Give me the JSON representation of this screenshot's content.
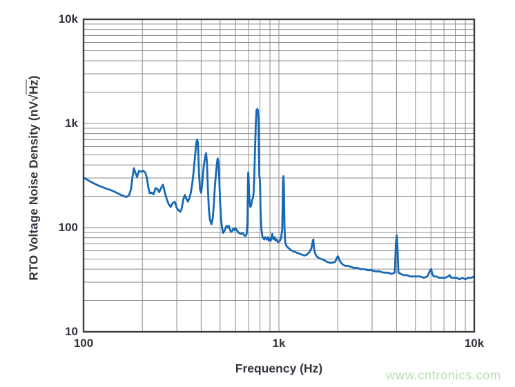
{
  "watermark": {
    "text": "www.cntronics.com"
  },
  "chart_data": {
    "type": "line",
    "title": "",
    "xlabel": "Frequency (Hz)",
    "ylabel": "RTO Voltage Noise Density (nV√Hz)",
    "ylabel_parts": {
      "prefix": "RTO Voltage Noise Density (nV",
      "radical": "√",
      "radicand": "Hz",
      "suffix": ")"
    },
    "x_scale": "log",
    "y_scale": "log",
    "xlim": [
      100,
      10000
    ],
    "ylim": [
      10,
      10000
    ],
    "x_ticks": [
      {
        "value": 100,
        "label": "100"
      },
      {
        "value": 1000,
        "label": "1k"
      },
      {
        "value": 10000,
        "label": "10k"
      }
    ],
    "y_ticks": [
      {
        "value": 10,
        "label": "10"
      },
      {
        "value": 100,
        "label": "100"
      },
      {
        "value": 1000,
        "label": "1k"
      },
      {
        "value": 10000,
        "label": "10k"
      }
    ],
    "grid": "major+minor log grid, all lines gray",
    "legend": "none",
    "colors": {
      "line": "#1669b4",
      "grid": "#8a8a8a",
      "spine": "#3b3b44",
      "text": "#34343e",
      "watermark": "#b4e4ad"
    },
    "series": [
      {
        "name": "RTO voltage noise density",
        "points": [
          [
            100,
            302
          ],
          [
            104,
            290
          ],
          [
            108,
            278
          ],
          [
            112,
            268
          ],
          [
            116,
            260
          ],
          [
            120,
            252
          ],
          [
            125,
            245
          ],
          [
            130,
            238
          ],
          [
            136,
            231
          ],
          [
            142,
            224
          ],
          [
            148,
            216
          ],
          [
            154,
            208
          ],
          [
            160,
            201
          ],
          [
            166,
            197
          ],
          [
            171,
            204
          ],
          [
            175,
            235
          ],
          [
            178,
            305
          ],
          [
            181,
            372
          ],
          [
            184,
            338
          ],
          [
            188,
            306
          ],
          [
            192,
            350
          ],
          [
            197,
            344
          ],
          [
            202,
            352
          ],
          [
            207,
            338
          ],
          [
            211,
            302
          ],
          [
            214,
            250
          ],
          [
            218,
            214
          ],
          [
            223,
            217
          ],
          [
            228,
            209
          ],
          [
            234,
            240
          ],
          [
            239,
            235
          ],
          [
            244,
            219
          ],
          [
            250,
            243
          ],
          [
            255,
            258
          ],
          [
            261,
            216
          ],
          [
            267,
            186
          ],
          [
            273,
            168
          ],
          [
            279,
            158
          ],
          [
            286,
            172
          ],
          [
            293,
            177
          ],
          [
            300,
            155
          ],
          [
            307,
            146
          ],
          [
            313,
            142
          ],
          [
            318,
            152
          ],
          [
            324,
            186
          ],
          [
            330,
            206
          ],
          [
            336,
            190
          ],
          [
            342,
            178
          ],
          [
            348,
            191
          ],
          [
            354,
            216
          ],
          [
            360,
            262
          ],
          [
            366,
            345
          ],
          [
            372,
            480
          ],
          [
            377,
            630
          ],
          [
            381,
            700
          ],
          [
            385,
            655
          ],
          [
            390,
            330
          ],
          [
            395,
            232
          ],
          [
            400,
            216
          ],
          [
            405,
            262
          ],
          [
            412,
            385
          ],
          [
            420,
            485
          ],
          [
            424,
            518
          ],
          [
            428,
            430
          ],
          [
            433,
            240
          ],
          [
            438,
            150
          ],
          [
            444,
            118
          ],
          [
            452,
            108
          ],
          [
            458,
            122
          ],
          [
            464,
            162
          ],
          [
            470,
            245
          ],
          [
            477,
            340
          ],
          [
            483,
            430
          ],
          [
            486,
            462
          ],
          [
            490,
            430
          ],
          [
            495,
            300
          ],
          [
            500,
            178
          ],
          [
            506,
            120
          ],
          [
            512,
            98
          ],
          [
            519,
            89
          ],
          [
            526,
            93
          ],
          [
            533,
            99
          ],
          [
            540,
            104
          ],
          [
            547,
            100
          ],
          [
            554,
            104
          ],
          [
            561,
            96
          ],
          [
            568,
            91
          ],
          [
            576,
            93
          ],
          [
            584,
            98
          ],
          [
            592,
            95
          ],
          [
            600,
            99
          ],
          [
            610,
            94
          ],
          [
            620,
            90
          ],
          [
            630,
            88
          ],
          [
            641,
            87
          ],
          [
            652,
            89
          ],
          [
            663,
            85
          ],
          [
            674,
            83
          ],
          [
            684,
            87
          ],
          [
            690,
            112
          ],
          [
            695,
            285
          ],
          [
            697,
            340
          ],
          [
            700,
            292
          ],
          [
            704,
            212
          ],
          [
            709,
            172
          ],
          [
            714,
            158
          ],
          [
            719,
            161
          ],
          [
            724,
            170
          ],
          [
            730,
            186
          ],
          [
            736,
            191
          ],
          [
            742,
            212
          ],
          [
            748,
            305
          ],
          [
            755,
            570
          ],
          [
            762,
            1020
          ],
          [
            768,
            1340
          ],
          [
            775,
            1375
          ],
          [
            781,
            1345
          ],
          [
            786,
            1100
          ],
          [
            790,
            520
          ],
          [
            794,
            312
          ],
          [
            798,
            300
          ],
          [
            802,
            232
          ],
          [
            806,
            142
          ],
          [
            812,
            102
          ],
          [
            818,
            89
          ],
          [
            825,
            81
          ],
          [
            833,
            79
          ],
          [
            841,
            77
          ],
          [
            850,
            81
          ],
          [
            859,
            79
          ],
          [
            868,
            77
          ],
          [
            878,
            81
          ],
          [
            888,
            75
          ],
          [
            898,
            79
          ],
          [
            908,
            75
          ],
          [
            918,
            81
          ],
          [
            925,
            87
          ],
          [
            932,
            79
          ],
          [
            942,
            77
          ],
          [
            952,
            81
          ],
          [
            963,
            75
          ],
          [
            974,
            77
          ],
          [
            986,
            73
          ],
          [
            1000,
            73
          ],
          [
            1012,
            75
          ],
          [
            1025,
            79
          ],
          [
            1040,
            96
          ],
          [
            1050,
            285
          ],
          [
            1055,
            312
          ],
          [
            1060,
            255
          ],
          [
            1068,
            102
          ],
          [
            1077,
            73
          ],
          [
            1088,
            68
          ],
          [
            1100,
            66
          ],
          [
            1115,
            64
          ],
          [
            1130,
            63
          ],
          [
            1150,
            61
          ],
          [
            1170,
            60
          ],
          [
            1195,
            59
          ],
          [
            1220,
            58
          ],
          [
            1250,
            57
          ],
          [
            1280,
            56
          ],
          [
            1315,
            55
          ],
          [
            1350,
            54
          ],
          [
            1390,
            55
          ],
          [
            1430,
            58
          ],
          [
            1465,
            63
          ],
          [
            1490,
            74
          ],
          [
            1500,
            77
          ],
          [
            1510,
            65
          ],
          [
            1530,
            57
          ],
          [
            1560,
            53
          ],
          [
            1600,
            51
          ],
          [
            1650,
            50
          ],
          [
            1700,
            49
          ],
          [
            1760,
            47
          ],
          [
            1820,
            46
          ],
          [
            1880,
            46
          ],
          [
            1940,
            47
          ],
          [
            1985,
            52
          ],
          [
            2010,
            53
          ],
          [
            2040,
            49
          ],
          [
            2080,
            46
          ],
          [
            2130,
            44
          ],
          [
            2190,
            43
          ],
          [
            2260,
            43
          ],
          [
            2340,
            42
          ],
          [
            2430,
            41
          ],
          [
            2520,
            41
          ],
          [
            2620,
            40
          ],
          [
            2730,
            40
          ],
          [
            2850,
            39
          ],
          [
            2980,
            39
          ],
          [
            3120,
            38
          ],
          [
            3270,
            38
          ],
          [
            3430,
            37
          ],
          [
            3600,
            37
          ],
          [
            3780,
            36
          ],
          [
            3920,
            37
          ],
          [
            3970,
            70
          ],
          [
            4010,
            84
          ],
          [
            4050,
            62
          ],
          [
            4090,
            37
          ],
          [
            4200,
            36
          ],
          [
            4350,
            35
          ],
          [
            4520,
            35
          ],
          [
            4700,
            34
          ],
          [
            4890,
            34
          ],
          [
            5090,
            34
          ],
          [
            5300,
            34
          ],
          [
            5520,
            33
          ],
          [
            5750,
            34
          ],
          [
            5950,
            39
          ],
          [
            6020,
            40
          ],
          [
            6090,
            36
          ],
          [
            6200,
            34
          ],
          [
            6400,
            34
          ],
          [
            6620,
            33
          ],
          [
            6850,
            33
          ],
          [
            7090,
            33
          ],
          [
            7340,
            34
          ],
          [
            7480,
            35
          ],
          [
            7620,
            33
          ],
          [
            7860,
            33
          ],
          [
            8130,
            33
          ],
          [
            8410,
            32
          ],
          [
            8700,
            33
          ],
          [
            9000,
            32
          ],
          [
            9310,
            33
          ],
          [
            9630,
            33
          ],
          [
            10000,
            34
          ]
        ]
      }
    ]
  }
}
